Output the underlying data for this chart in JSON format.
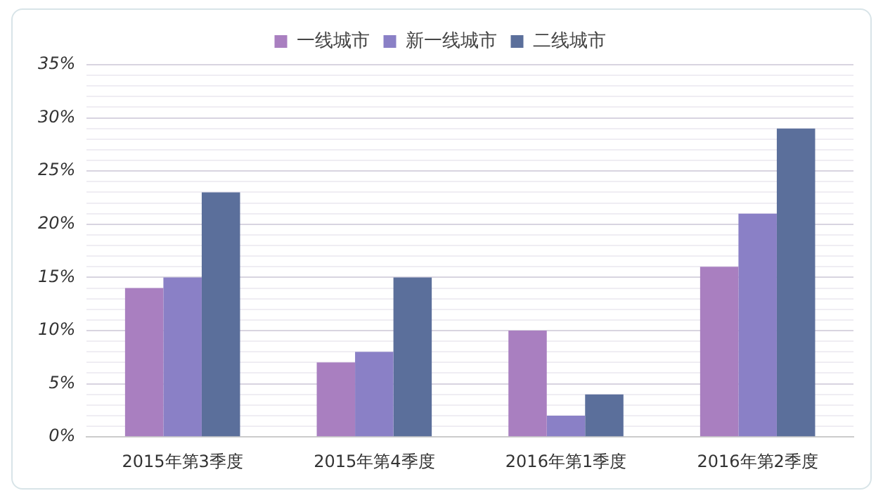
{
  "chart_data": {
    "type": "bar",
    "categories": [
      "2015年第3季度",
      "2015年第4季度",
      "2016年第1季度",
      "2016年第2季度"
    ],
    "series": [
      {
        "name": "一线城市",
        "color": "#a97fc0",
        "values": [
          14,
          7,
          10,
          16
        ]
      },
      {
        "name": "新一线城市",
        "color": "#8a80c6",
        "values": [
          15,
          8,
          2,
          21
        ]
      },
      {
        "name": "二线城市",
        "color": "#5b6f9b",
        "values": [
          23,
          15,
          4,
          29
        ]
      }
    ],
    "ylim": [
      0,
      35
    ],
    "yticks": [
      {
        "value": 0,
        "label": "0%"
      },
      {
        "value": 1,
        "label": null
      },
      {
        "value": 2,
        "label": null
      },
      {
        "value": 3,
        "label": null
      },
      {
        "value": 4,
        "label": null
      },
      {
        "value": 5,
        "label": "5%"
      },
      {
        "value": 6,
        "label": null
      },
      {
        "value": 7,
        "label": null
      },
      {
        "value": 8,
        "label": null
      },
      {
        "value": 9,
        "label": null
      },
      {
        "value": 10,
        "label": "10%"
      },
      {
        "value": 11,
        "label": null
      },
      {
        "value": 12,
        "label": null
      },
      {
        "value": 13,
        "label": null
      },
      {
        "value": 14,
        "label": null
      },
      {
        "value": 15,
        "label": "15%"
      },
      {
        "value": 16,
        "label": null
      },
      {
        "value": 17,
        "label": null
      },
      {
        "value": 18,
        "label": null
      },
      {
        "value": 19,
        "label": null
      },
      {
        "value": 20,
        "label": "20%"
      },
      {
        "value": 21,
        "label": null
      },
      {
        "value": 22,
        "label": null
      },
      {
        "value": 23,
        "label": null
      },
      {
        "value": 24,
        "label": null
      },
      {
        "value": 25,
        "label": "25%"
      },
      {
        "value": 26,
        "label": null
      },
      {
        "value": 27,
        "label": null
      },
      {
        "value": 28,
        "label": null
      },
      {
        "value": 29,
        "label": null
      },
      {
        "value": 30,
        "label": "30%"
      },
      {
        "value": 31,
        "label": null
      },
      {
        "value": 32,
        "label": null
      },
      {
        "value": 33,
        "label": null
      },
      {
        "value": 34,
        "label": null
      },
      {
        "value": 35,
        "label": "35%"
      }
    ],
    "grid": "y",
    "legend": "top"
  }
}
